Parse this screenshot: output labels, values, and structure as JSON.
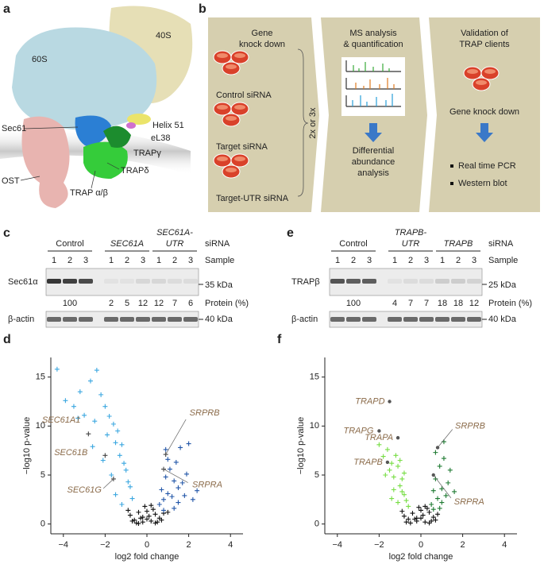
{
  "panels": {
    "a": {
      "letter": "a",
      "labels": {
        "s40": "40S",
        "s60": "60S",
        "sec61": "Sec61",
        "helix": "Helix 51",
        "el38": "eL38",
        "trapg": "TRAPγ",
        "trapd": "TRAPδ",
        "ost": "OST",
        "trapab": "TRAP α/β"
      }
    },
    "b": {
      "letter": "b",
      "step1": {
        "title": [
          "Gene",
          "knock down"
        ],
        "conditions": [
          "Control siRNA",
          "Target siRNA",
          "Target-UTR siRNA"
        ],
        "repeat": "2x or 3x"
      },
      "step2": {
        "title": [
          "MS analysis",
          "& quantification"
        ],
        "result": [
          "Differential",
          "abundance",
          "analysis"
        ]
      },
      "step3": {
        "title": [
          "Validation of",
          "TRAP clients"
        ],
        "method": "Gene knock down",
        "readouts": [
          "Real time PCR",
          "Western blot"
        ]
      }
    },
    "c": {
      "letter": "c",
      "headers": [
        [
          "Control"
        ],
        [
          "SEC61A"
        ],
        [
          "SEC61A-",
          "UTR"
        ]
      ],
      "sirna": "siRNA",
      "sample": "Sample",
      "samples": [
        1,
        2,
        3,
        1,
        2,
        3,
        1,
        2,
        3
      ],
      "blot": "Sec61α",
      "blot_size": "35 kDa",
      "protein": [
        100,
        2,
        5,
        12,
        12,
        7,
        6
      ],
      "protein_label": "Protein (%)",
      "loading": "β-actin",
      "loading_size": "40 kDa"
    },
    "e": {
      "letter": "e",
      "headers": [
        [
          "Control"
        ],
        [
          "TRAPB-",
          "UTR"
        ],
        [
          "TRAPB"
        ]
      ],
      "sirna": "siRNA",
      "sample": "Sample",
      "samples": [
        1,
        2,
        3,
        1,
        2,
        3,
        1,
        2,
        3
      ],
      "blot": "TRAPβ",
      "blot_size": "25 kDa",
      "protein": [
        100,
        4,
        7,
        7,
        18,
        18,
        12
      ],
      "protein_label": "Protein (%)",
      "loading": "β-actin",
      "loading_size": "40 kDa"
    }
  },
  "chart_data": [
    {
      "type": "scatter",
      "panel": "d",
      "xlabel": "log2 fold change",
      "ylabel": "−log10 p-value",
      "xlim": [
        -4.6,
        4.6
      ],
      "ylim": [
        -1,
        17
      ],
      "xticks": [
        {
          "value": -4,
          "label": "−4"
        },
        {
          "value": -2,
          "label": "−2"
        },
        0,
        2,
        4
      ],
      "yticks": [
        0,
        5,
        10,
        15
      ],
      "marker": "plus",
      "annotation_marker": "plus",
      "annotation_color": "#8b6b4a",
      "series": [
        {
          "color": "#111111",
          "x": [
            -0.8,
            -0.6,
            -0.4,
            -0.2,
            0,
            0.2,
            0.4,
            0.6,
            0.8,
            -0.5,
            0.3,
            -0.1,
            0.1,
            0.5,
            -0.3,
            0.7,
            -0.7,
            0.0,
            0.2,
            -0.2,
            1.0,
            -0.9,
            0.4,
            -0.4
          ],
          "y": [
            0.9,
            0.4,
            1.2,
            0.2,
            0.5,
            0.3,
            1.0,
            0.6,
            1.1,
            0.1,
            1.5,
            1.8,
            0.8,
            0.2,
            0.6,
            0.4,
            0.3,
            1.3,
            1.9,
            0.7,
            1.2,
            1.4,
            0.1,
            0.05
          ]
        },
        {
          "color": "#3ba7e0",
          "x": [
            -4.3,
            -3.9,
            -3.5,
            -3.2,
            -3.0,
            -2.7,
            -2.5,
            -2.4,
            -2.2,
            -2.0,
            -1.9,
            -1.8,
            -1.6,
            -1.5,
            -1.4,
            -1.3,
            -1.2,
            -1.1,
            -1.0,
            -0.9,
            -0.8,
            -0.7,
            -2.6,
            -2.1,
            -1.7,
            -3.3,
            -1.5,
            -1.2
          ],
          "y": [
            15.8,
            12.6,
            12.0,
            13.5,
            11.1,
            14.6,
            10.5,
            15.7,
            13.2,
            12.0,
            9.1,
            11.0,
            10.2,
            8.3,
            9.5,
            7.0,
            8.1,
            6.2,
            5.5,
            4.3,
            3.8,
            2.6,
            7.9,
            6.5,
            5.0,
            10.8,
            3.0,
            2.0
          ]
        },
        {
          "color": "#2256a8",
          "x": [
            0.6,
            0.7,
            0.8,
            0.9,
            1.0,
            1.1,
            1.2,
            1.3,
            1.4,
            1.5,
            1.6,
            1.7,
            1.8,
            1.9,
            2.0,
            2.2,
            2.4,
            1.0,
            1.3,
            0.8,
            1.5,
            0.9
          ],
          "y": [
            2.0,
            3.5,
            2.5,
            4.8,
            3.1,
            5.6,
            2.8,
            4.4,
            6.3,
            3.7,
            7.8,
            4.2,
            2.9,
            5.1,
            8.2,
            2.5,
            3.4,
            6.6,
            1.6,
            1.4,
            2.2,
            7.6
          ]
        }
      ],
      "annotations": [
        {
          "text": "SEC61A1",
          "x": -2.8,
          "y": 9.2
        },
        {
          "text": "SEC61B",
          "x": -2.0,
          "y": 7.0
        },
        {
          "text": "SEC61G",
          "x": -1.6,
          "y": 4.6
        },
        {
          "text": "SRPRB",
          "x": 0.9,
          "y": 7.1
        },
        {
          "text": "SRPRA",
          "x": 0.8,
          "y": 5.6
        }
      ]
    },
    {
      "type": "scatter",
      "panel": "f",
      "xlabel": "log2 fold change",
      "ylabel": "−log10 p-value",
      "xlim": [
        -4.6,
        4.6
      ],
      "ylim": [
        -1,
        17
      ],
      "xticks": [
        {
          "value": -4,
          "label": "−4"
        },
        {
          "value": -2,
          "label": "−2"
        },
        0,
        2,
        4
      ],
      "yticks": [
        0,
        5,
        10,
        15
      ],
      "marker": "plus",
      "annotation_marker": "dot",
      "annotation_color": "#8b6b4a",
      "series": [
        {
          "color": "#111111",
          "x": [
            -0.8,
            -0.6,
            -0.4,
            -0.2,
            0,
            0.2,
            0.4,
            0.6,
            0.8,
            -0.5,
            0.3,
            -0.1,
            0.1,
            0.5,
            -0.3,
            0.7,
            -0.7,
            0.0,
            0.2,
            -0.2,
            -0.9,
            0.4
          ],
          "y": [
            0.8,
            0.5,
            1.1,
            0.3,
            0.6,
            0.2,
            1.2,
            0.7,
            1.0,
            0.1,
            1.6,
            1.7,
            0.9,
            0.3,
            0.5,
            0.4,
            0.2,
            1.4,
            1.8,
            0.6,
            1.3,
            0.1
          ]
        },
        {
          "color": "#77dd44",
          "x": [
            -2.0,
            -1.8,
            -1.6,
            -1.5,
            -1.4,
            -1.3,
            -1.2,
            -1.1,
            -1.0,
            -0.9,
            -0.8,
            -0.7,
            -0.6,
            -1.7,
            -1.3,
            -1.0,
            -0.8,
            -1.4,
            -1.1,
            -0.9
          ],
          "y": [
            8.1,
            6.9,
            7.6,
            5.5,
            6.2,
            4.8,
            7.0,
            5.9,
            3.9,
            4.6,
            3.0,
            2.4,
            1.8,
            5.0,
            3.5,
            6.5,
            5.2,
            2.6,
            2.2,
            3.3
          ]
        },
        {
          "color": "#1e7a32",
          "x": [
            0.5,
            0.6,
            0.7,
            0.8,
            0.9,
            1.0,
            1.1,
            1.2,
            1.3,
            1.4,
            1.6,
            0.7,
            0.9,
            1.1,
            1.0,
            0.6
          ],
          "y": [
            2.0,
            3.4,
            4.6,
            2.6,
            5.9,
            3.6,
            6.7,
            2.9,
            4.2,
            5.5,
            3.3,
            7.3,
            1.6,
            8.4,
            2.2,
            1.5
          ]
        }
      ],
      "annotations": [
        {
          "text": "TRAPD",
          "x": -1.5,
          "y": 12.5
        },
        {
          "text": "TRAPG",
          "x": -2.0,
          "y": 9.5
        },
        {
          "text": "TRAPA",
          "x": -1.1,
          "y": 8.8
        },
        {
          "text": "TRAPB",
          "x": -1.6,
          "y": 6.3
        },
        {
          "text": "SRPRB",
          "x": 0.8,
          "y": 7.8
        },
        {
          "text": "SRPRA",
          "x": 0.6,
          "y": 5.0
        }
      ]
    }
  ]
}
